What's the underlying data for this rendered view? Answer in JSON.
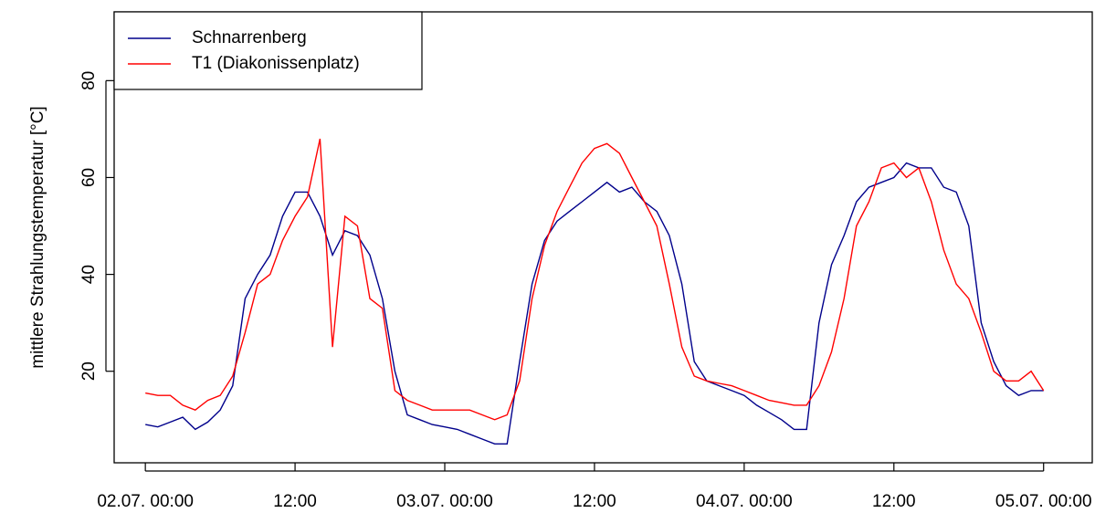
{
  "chart_data": {
    "type": "line",
    "y_label": "mittlere Strahlungstemperatur [°C]",
    "x": [
      0,
      1,
      2,
      3,
      4,
      5,
      6,
      7,
      8,
      9,
      10,
      11,
      12,
      13,
      14,
      15,
      16,
      17,
      18,
      19,
      20,
      21,
      22,
      23,
      24,
      25,
      26,
      27,
      28,
      29,
      30,
      31,
      32,
      33,
      34,
      35,
      36,
      37,
      38,
      39,
      40,
      41,
      42,
      43,
      44,
      45,
      46,
      47,
      48,
      49,
      50,
      51,
      52,
      53,
      54,
      55,
      56,
      57,
      58,
      59,
      60,
      61,
      62,
      63,
      64,
      65,
      66,
      67,
      68,
      69,
      70,
      71,
      72
    ],
    "series": [
      {
        "name": "Schnarrenberg",
        "color": "#00008b",
        "values": [
          9,
          8.5,
          9.5,
          10.5,
          8,
          9.5,
          12,
          17,
          35,
          40,
          44,
          52,
          57,
          57,
          52,
          44,
          49,
          48,
          44,
          35,
          20,
          11,
          10,
          9,
          8.5,
          8,
          7,
          6,
          5,
          5,
          22,
          38,
          47,
          51,
          53,
          55,
          57,
          59,
          57,
          58,
          55,
          53,
          48,
          38,
          22,
          18,
          17,
          16,
          15,
          13,
          11.5,
          10,
          8,
          8,
          30,
          42,
          48,
          55,
          58,
          59,
          60,
          63,
          62,
          62,
          58,
          57,
          50,
          30,
          22,
          17,
          15,
          16,
          16
        ]
      },
      {
        "name": "T1 (Diakonissenplatz)",
        "color": "#ff0000",
        "values": [
          15.5,
          15,
          15,
          13,
          12,
          14,
          15,
          19,
          28,
          38,
          40,
          47,
          52,
          56,
          68,
          25,
          52,
          50,
          35,
          33,
          16,
          14,
          13,
          12,
          12,
          12,
          12,
          11,
          10,
          11,
          18,
          35,
          46,
          53,
          58,
          63,
          66,
          67,
          65,
          60,
          55,
          50,
          38,
          25,
          19,
          18,
          17.5,
          17,
          16,
          15,
          14,
          13.5,
          13,
          13,
          17,
          24,
          35,
          50,
          55,
          62,
          63,
          60,
          62,
          55,
          45,
          38,
          35,
          28,
          20,
          18,
          18,
          20,
          16
        ]
      }
    ],
    "xlim": [
      -2.5,
      75.9
    ],
    "xticks": [
      {
        "value": 0,
        "label": "02.07. 00:00"
      },
      {
        "value": 12,
        "label": "12:00"
      },
      {
        "value": 24,
        "label": "03.07. 00:00"
      },
      {
        "value": 36,
        "label": "12:00"
      },
      {
        "value": 48,
        "label": "04.07. 00:00"
      },
      {
        "value": 60,
        "label": "12:00"
      },
      {
        "value": 72,
        "label": "05.07. 00:00"
      }
    ],
    "ylim": [
      1.1,
      94.2
    ],
    "yticks": [
      20,
      40,
      60,
      80
    ],
    "legend": "top-left"
  }
}
